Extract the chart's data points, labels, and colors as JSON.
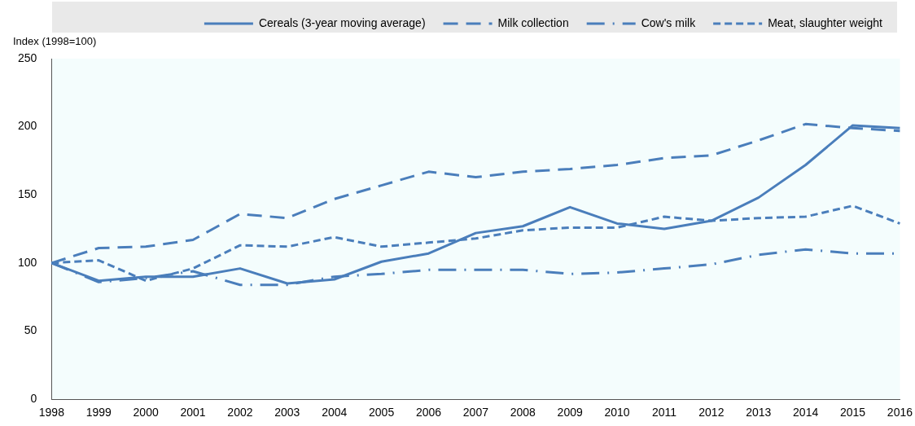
{
  "chart_data": {
    "type": "line",
    "ylabel": "Index (1998=100)",
    "categories": [
      "1998",
      "1999",
      "2000",
      "2001",
      "2002",
      "2003",
      "2004",
      "2005",
      "2006",
      "2007",
      "2008",
      "2009",
      "2010",
      "2011",
      "2012",
      "2013",
      "2014",
      "2015",
      "2016"
    ],
    "series": [
      {
        "name": "Cereals (3-year moving average)",
        "color": "#4a7ebb",
        "line_style": "solid",
        "values": [
          100,
          87,
          90,
          90,
          96,
          85,
          88,
          101,
          107,
          122,
          127,
          141,
          129,
          125,
          131,
          148,
          172,
          201,
          199
        ]
      },
      {
        "name": "Milk collection",
        "color": "#4a7ebb",
        "line_style": "dashed",
        "values": [
          100,
          111,
          112,
          117,
          136,
          133,
          147,
          157,
          167,
          163,
          167,
          169,
          172,
          177,
          179,
          190,
          202,
          199,
          197
        ]
      },
      {
        "name": "Cow's milk",
        "color": "#4a7ebb",
        "line_style": "dashdot",
        "values": [
          100,
          86,
          89,
          94,
          84,
          84,
          90,
          92,
          95,
          95,
          95,
          92,
          93,
          96,
          99,
          106,
          110,
          107,
          107
        ]
      },
      {
        "name": "Meat, slaughter weight",
        "color": "#4a7ebb",
        "line_style": "shortdash",
        "values": [
          100,
          102,
          87,
          96,
          113,
          112,
          119,
          112,
          115,
          118,
          124,
          126,
          126,
          134,
          131,
          133,
          134,
          142,
          129
        ]
      }
    ],
    "ylim": [
      0,
      250
    ],
    "yticks": [
      0,
      50,
      100,
      150,
      200,
      250
    ],
    "grid": false,
    "legend": "top",
    "marker": "none"
  }
}
